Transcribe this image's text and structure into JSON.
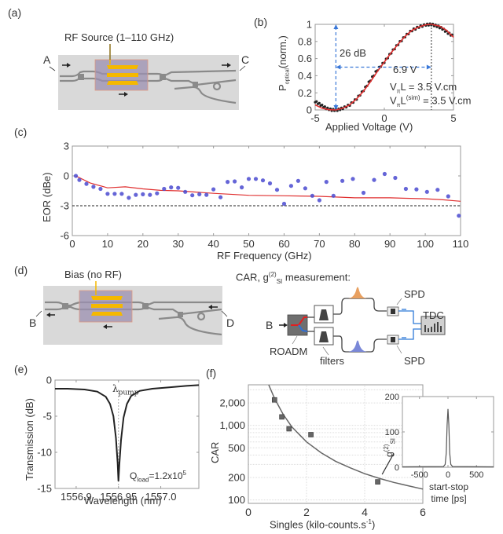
{
  "panels": {
    "a": {
      "label": "(a)",
      "rf_source_label": "RF Source (1–110 GHz)",
      "port_in": "A",
      "port_out": "C"
    },
    "b": {
      "label": "(b)",
      "annot_extinction": "26 dB",
      "annot_voltage": "6.9 V",
      "annot_vpil": "VπL = 3.5 V.cm",
      "annot_vpil_sim": "VπL(sim) = 3.5 V.cm"
    },
    "c": {
      "label": "(c)"
    },
    "d": {
      "label": "(d)",
      "bias_label": "Bias (no RF)",
      "port_left": "B",
      "port_right": "D",
      "measurement_title": "CAR, g(2)SI measurement:",
      "input_label": "B",
      "roadm_label": "ROADM",
      "filters_label": "filters",
      "spd_top_label": "SPD",
      "spd_bottom_label": "SPD",
      "tdc_label": "TDC"
    },
    "e": {
      "label": "(e)",
      "pump_label": "λpump",
      "q_label": "Qload=1.2x10^5"
    },
    "f": {
      "label": "(f)",
      "inset_ylabel": "g(2)SI"
    }
  },
  "colors": {
    "fit_red": "#e03030",
    "data_blue": "#4a4ad0",
    "annot_blue": "#3a78d8",
    "chip_gray": "#d8d8d8",
    "waveguide": "#8a8a8a",
    "electrode": "#f5b800",
    "modulator_box": "#9b8fb0"
  },
  "chart_data": [
    {
      "id": "b",
      "type": "line",
      "title": "",
      "xlabel": "Applied Voltage (V)",
      "ylabel": "Poptical(norm.)",
      "xlim": [
        -5,
        5
      ],
      "ylim": [
        0,
        1
      ],
      "xticks": [
        -5,
        0,
        5
      ],
      "yticks": [
        0,
        0.2,
        0.4,
        0.6,
        0.8,
        1
      ],
      "ytick_labels": [
        "0",
        "0.2",
        "0.4",
        "0.6",
        "0.8",
        "1"
      ],
      "series": [
        {
          "name": "measured",
          "style": "black dots",
          "x": [
            -5,
            -4.6,
            -4.2,
            -3.8,
            -3.4,
            -3.0,
            -2.5,
            -2.0,
            -1.5,
            -1.0,
            -0.5,
            0,
            0.5,
            1.0,
            1.5,
            2.0,
            2.5,
            3.0,
            3.4,
            3.8,
            4.2,
            4.6,
            5
          ],
          "y": [
            0.1,
            0.06,
            0.02,
            0.0,
            0.0,
            0.02,
            0.06,
            0.13,
            0.23,
            0.35,
            0.47,
            0.56,
            0.67,
            0.77,
            0.86,
            0.93,
            0.97,
            0.995,
            1.0,
            0.98,
            0.95,
            0.9,
            0.86
          ]
        },
        {
          "name": "fit",
          "style": "red line",
          "x": [
            -5,
            -4.5,
            -4,
            -3.5,
            -3,
            -2.5,
            -2,
            -1.5,
            -1,
            -0.5,
            0,
            0.5,
            1,
            1.5,
            2,
            2.5,
            3,
            3.4,
            4,
            4.5,
            5
          ],
          "y": [
            0.06,
            0.02,
            0.003,
            0.0,
            0.02,
            0.06,
            0.13,
            0.22,
            0.33,
            0.45,
            0.56,
            0.67,
            0.77,
            0.86,
            0.93,
            0.97,
            0.995,
            1.0,
            0.98,
            0.93,
            0.85
          ]
        }
      ],
      "annotations": [
        {
          "text": "26 dB",
          "type": "vertical arrow",
          "x": -3.5,
          "from_y": 0,
          "to_y": 1
        },
        {
          "text": "6.9 V",
          "type": "horizontal arrow",
          "y": 0.5,
          "from_x": -3.5,
          "to_x": 3.4
        },
        {
          "text": "VπL = 3.5 V.cm"
        },
        {
          "text": "VπL(sim) = 3.5 V.cm"
        }
      ]
    },
    {
      "id": "c",
      "type": "scatter",
      "title": "",
      "xlabel": "RF Frequency (GHz)",
      "ylabel": "EOR (dBe)",
      "xlim": [
        0,
        110
      ],
      "ylim": [
        -6,
        3
      ],
      "xticks": [
        0,
        10,
        20,
        30,
        40,
        50,
        60,
        70,
        80,
        90,
        100,
        110
      ],
      "yticks": [
        -6,
        -3,
        0,
        3
      ],
      "reference_line": {
        "y": -3,
        "style": "black dashed"
      },
      "series": [
        {
          "name": "measured",
          "style": "blue dots",
          "x": [
            1,
            2,
            4,
            6,
            8,
            10,
            12,
            14,
            16,
            18,
            20,
            22,
            24,
            26,
            28,
            30,
            32,
            34,
            36,
            38,
            40,
            42,
            44,
            46,
            48,
            50,
            52,
            54,
            56,
            58,
            60,
            62,
            64,
            66,
            68,
            70,
            72,
            74,
            76.5,
            79.5,
            82.5,
            85.5,
            88.5,
            91.5,
            94.5,
            97.5,
            100.5,
            103.5,
            106.5,
            109.5
          ],
          "y": [
            0.0,
            -0.4,
            -0.8,
            -1.1,
            -1.3,
            -1.8,
            -1.8,
            -1.8,
            -2.2,
            -1.9,
            -1.85,
            -1.9,
            -1.75,
            -1.3,
            -1.15,
            -1.2,
            -1.6,
            -1.95,
            -1.85,
            -1.9,
            -1.35,
            -2.15,
            -0.6,
            -0.55,
            -1.15,
            -0.3,
            -0.3,
            -0.45,
            -0.75,
            -1.4,
            -2.8,
            -1.0,
            -0.5,
            -1.25,
            -2.0,
            -2.45,
            -0.6,
            -2.0,
            -0.5,
            -0.3,
            -1.7,
            -0.4,
            0.2,
            -0.2,
            -1.3,
            -1.35,
            -1.6,
            -1.4,
            -2.05,
            -4.0
          ]
        },
        {
          "name": "simulation",
          "style": "red line",
          "x": [
            1,
            5,
            10,
            15,
            20,
            25,
            30,
            40,
            50,
            60,
            70,
            80,
            90,
            100,
            105,
            110
          ],
          "y": [
            0.0,
            -0.7,
            -1.2,
            -1.1,
            -1.3,
            -1.45,
            -1.5,
            -1.75,
            -1.95,
            -2.0,
            -2.05,
            -2.2,
            -2.2,
            -2.3,
            -2.4,
            -2.55
          ]
        }
      ]
    },
    {
      "id": "e",
      "type": "line",
      "title": "",
      "xlabel": "Wavelength (nm)",
      "ylabel": "Transmission (dB)",
      "xlim": [
        1556.875,
        1557.045
      ],
      "ylim": [
        -15,
        0
      ],
      "xticks": [
        1556.9,
        1556.95,
        1557.0
      ],
      "xtick_labels": [
        "1556.9",
        "1556.95",
        "1557.0"
      ],
      "yticks": [
        -15,
        -10,
        -5,
        0
      ],
      "series": [
        {
          "name": "transmission",
          "style": "black line",
          "x": [
            1556.875,
            1556.89,
            1556.91,
            1556.925,
            1556.935,
            1556.94,
            1556.944,
            1556.947,
            1556.949,
            1556.95,
            1556.951,
            1556.953,
            1556.956,
            1556.96,
            1556.965,
            1556.975,
            1556.99,
            1557.01,
            1557.03,
            1557.045
          ],
          "y": [
            -1.2,
            -1.2,
            -1.3,
            -1.6,
            -2.3,
            -3.3,
            -5.0,
            -8.0,
            -11.5,
            -14.0,
            -11.8,
            -8.3,
            -5.2,
            -3.3,
            -2.2,
            -1.5,
            -1.2,
            -1.0,
            -0.8,
            -0.7
          ]
        }
      ],
      "annotations": [
        {
          "text": "λpump",
          "x": 1556.95,
          "type": "vertical dotted line"
        },
        {
          "text": "Qload=1.2x10^5"
        }
      ]
    },
    {
      "id": "f",
      "type": "scatter",
      "title": "",
      "xlabel": "Singles (kilo-counts.s⁻¹)",
      "ylabel": "CAR",
      "xlim": [
        0,
        6
      ],
      "ylim": [
        90,
        3500
      ],
      "yscale": "log",
      "xticks": [
        0,
        2,
        4,
        6
      ],
      "yticks": [
        100,
        200,
        500,
        1000,
        2000
      ],
      "ytick_labels": [
        "100",
        "200",
        "500",
        "1,000",
        "2,000"
      ],
      "grid": true,
      "series": [
        {
          "name": "measured",
          "style": "gray squares",
          "x": [
            0.9,
            1.15,
            1.4,
            2.15,
            4.45
          ],
          "y": [
            2200,
            1300,
            900,
            750,
            175
          ]
        },
        {
          "name": "fit",
          "style": "gray line",
          "x": [
            0.7,
            0.9,
            1.2,
            1.5,
            2.0,
            2.5,
            3.0,
            3.5,
            4.0,
            4.5,
            5.0,
            5.5,
            6.0
          ],
          "y": [
            3500,
            2300,
            1400,
            950,
            600,
            430,
            330,
            270,
            225,
            195,
            172,
            155,
            140
          ]
        }
      ]
    },
    {
      "id": "f-inset",
      "type": "line",
      "title": "",
      "xlabel": "start-stop time [ps]",
      "ylabel": "g(2)SI",
      "xlim": [
        -800,
        800
      ],
      "ylim": [
        0,
        200
      ],
      "xticks": [
        -500,
        0,
        500
      ],
      "yticks": [
        0,
        100,
        200
      ],
      "series": [
        {
          "name": "g2",
          "style": "gray line",
          "x": [
            -800,
            -80,
            -50,
            -30,
            -15,
            0,
            15,
            30,
            50,
            80,
            800
          ],
          "y": [
            1,
            2,
            8,
            40,
            120,
            165,
            120,
            40,
            8,
            2,
            1
          ]
        }
      ]
    }
  ]
}
